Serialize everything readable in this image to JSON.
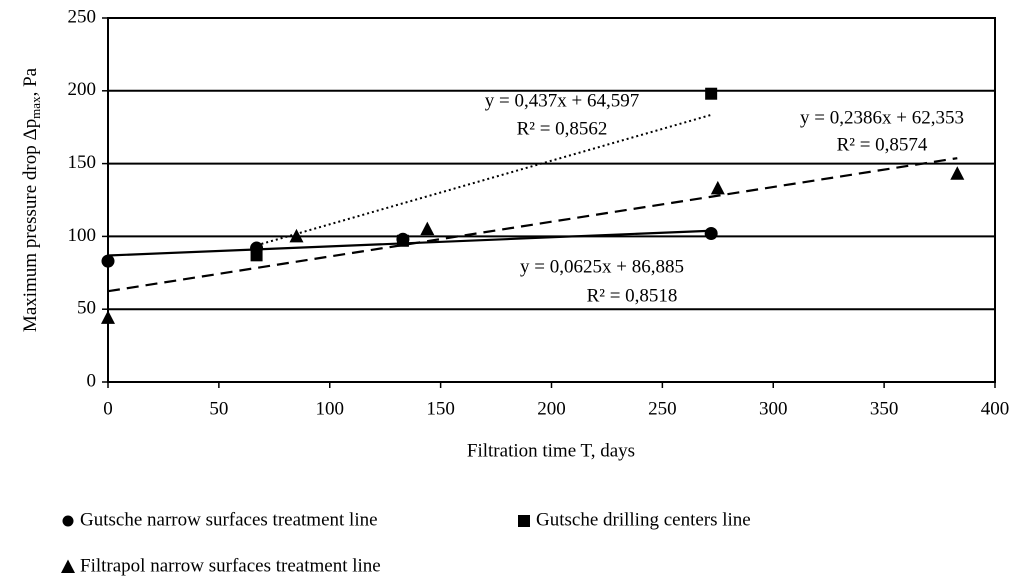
{
  "chart_data": {
    "type": "scatter",
    "x_label": "Filtration time T, days",
    "y_label": "Maximum pressure drop Δp",
    "y_label_subscript": "max",
    "y_label_suffix": ", Pa",
    "xlim": [
      0,
      400
    ],
    "xticks": [
      0,
      50,
      100,
      150,
      200,
      250,
      300,
      350,
      400
    ],
    "ylim": [
      0,
      250
    ],
    "yticks": [
      0,
      50,
      100,
      150,
      200,
      250
    ],
    "grid": true,
    "legend": "bottom",
    "series": [
      {
        "name": "Gutsche narrow surfaces treatment line",
        "color": "#000000",
        "marker": "circle",
        "x": [
          0,
          67,
          133,
          272
        ],
        "values": [
          83,
          92,
          98,
          102
        ],
        "trend": {
          "slope": 0.0625,
          "intercept": 86.885,
          "dash": "solid",
          "equation": "y = 0,0625x + 86,885",
          "r_squared": "R² = 0,8518"
        }
      },
      {
        "name": "Gutsche drilling centers line",
        "color": "#000000",
        "marker": "square",
        "x": [
          67,
          133,
          272
        ],
        "values": [
          87,
          97,
          198
        ],
        "trend": {
          "slope": 0.437,
          "intercept": 64.597,
          "dash": "dotted",
          "equation": "y = 0,437x + 64,597",
          "r_squared": "R² = 0,8562"
        }
      },
      {
        "name": "Filtrapol narrow surfaces treatment line",
        "color": "#000000",
        "marker": "triangle",
        "x": [
          0,
          85,
          144,
          275,
          383
        ],
        "values": [
          44,
          100,
          105,
          133,
          143
        ],
        "trend": {
          "slope": 0.2386,
          "intercept": 62.353,
          "dash": "dashed",
          "equation": "y = 0,2386x + 62,353",
          "r_squared": "R² = 0,8574"
        }
      }
    ]
  }
}
